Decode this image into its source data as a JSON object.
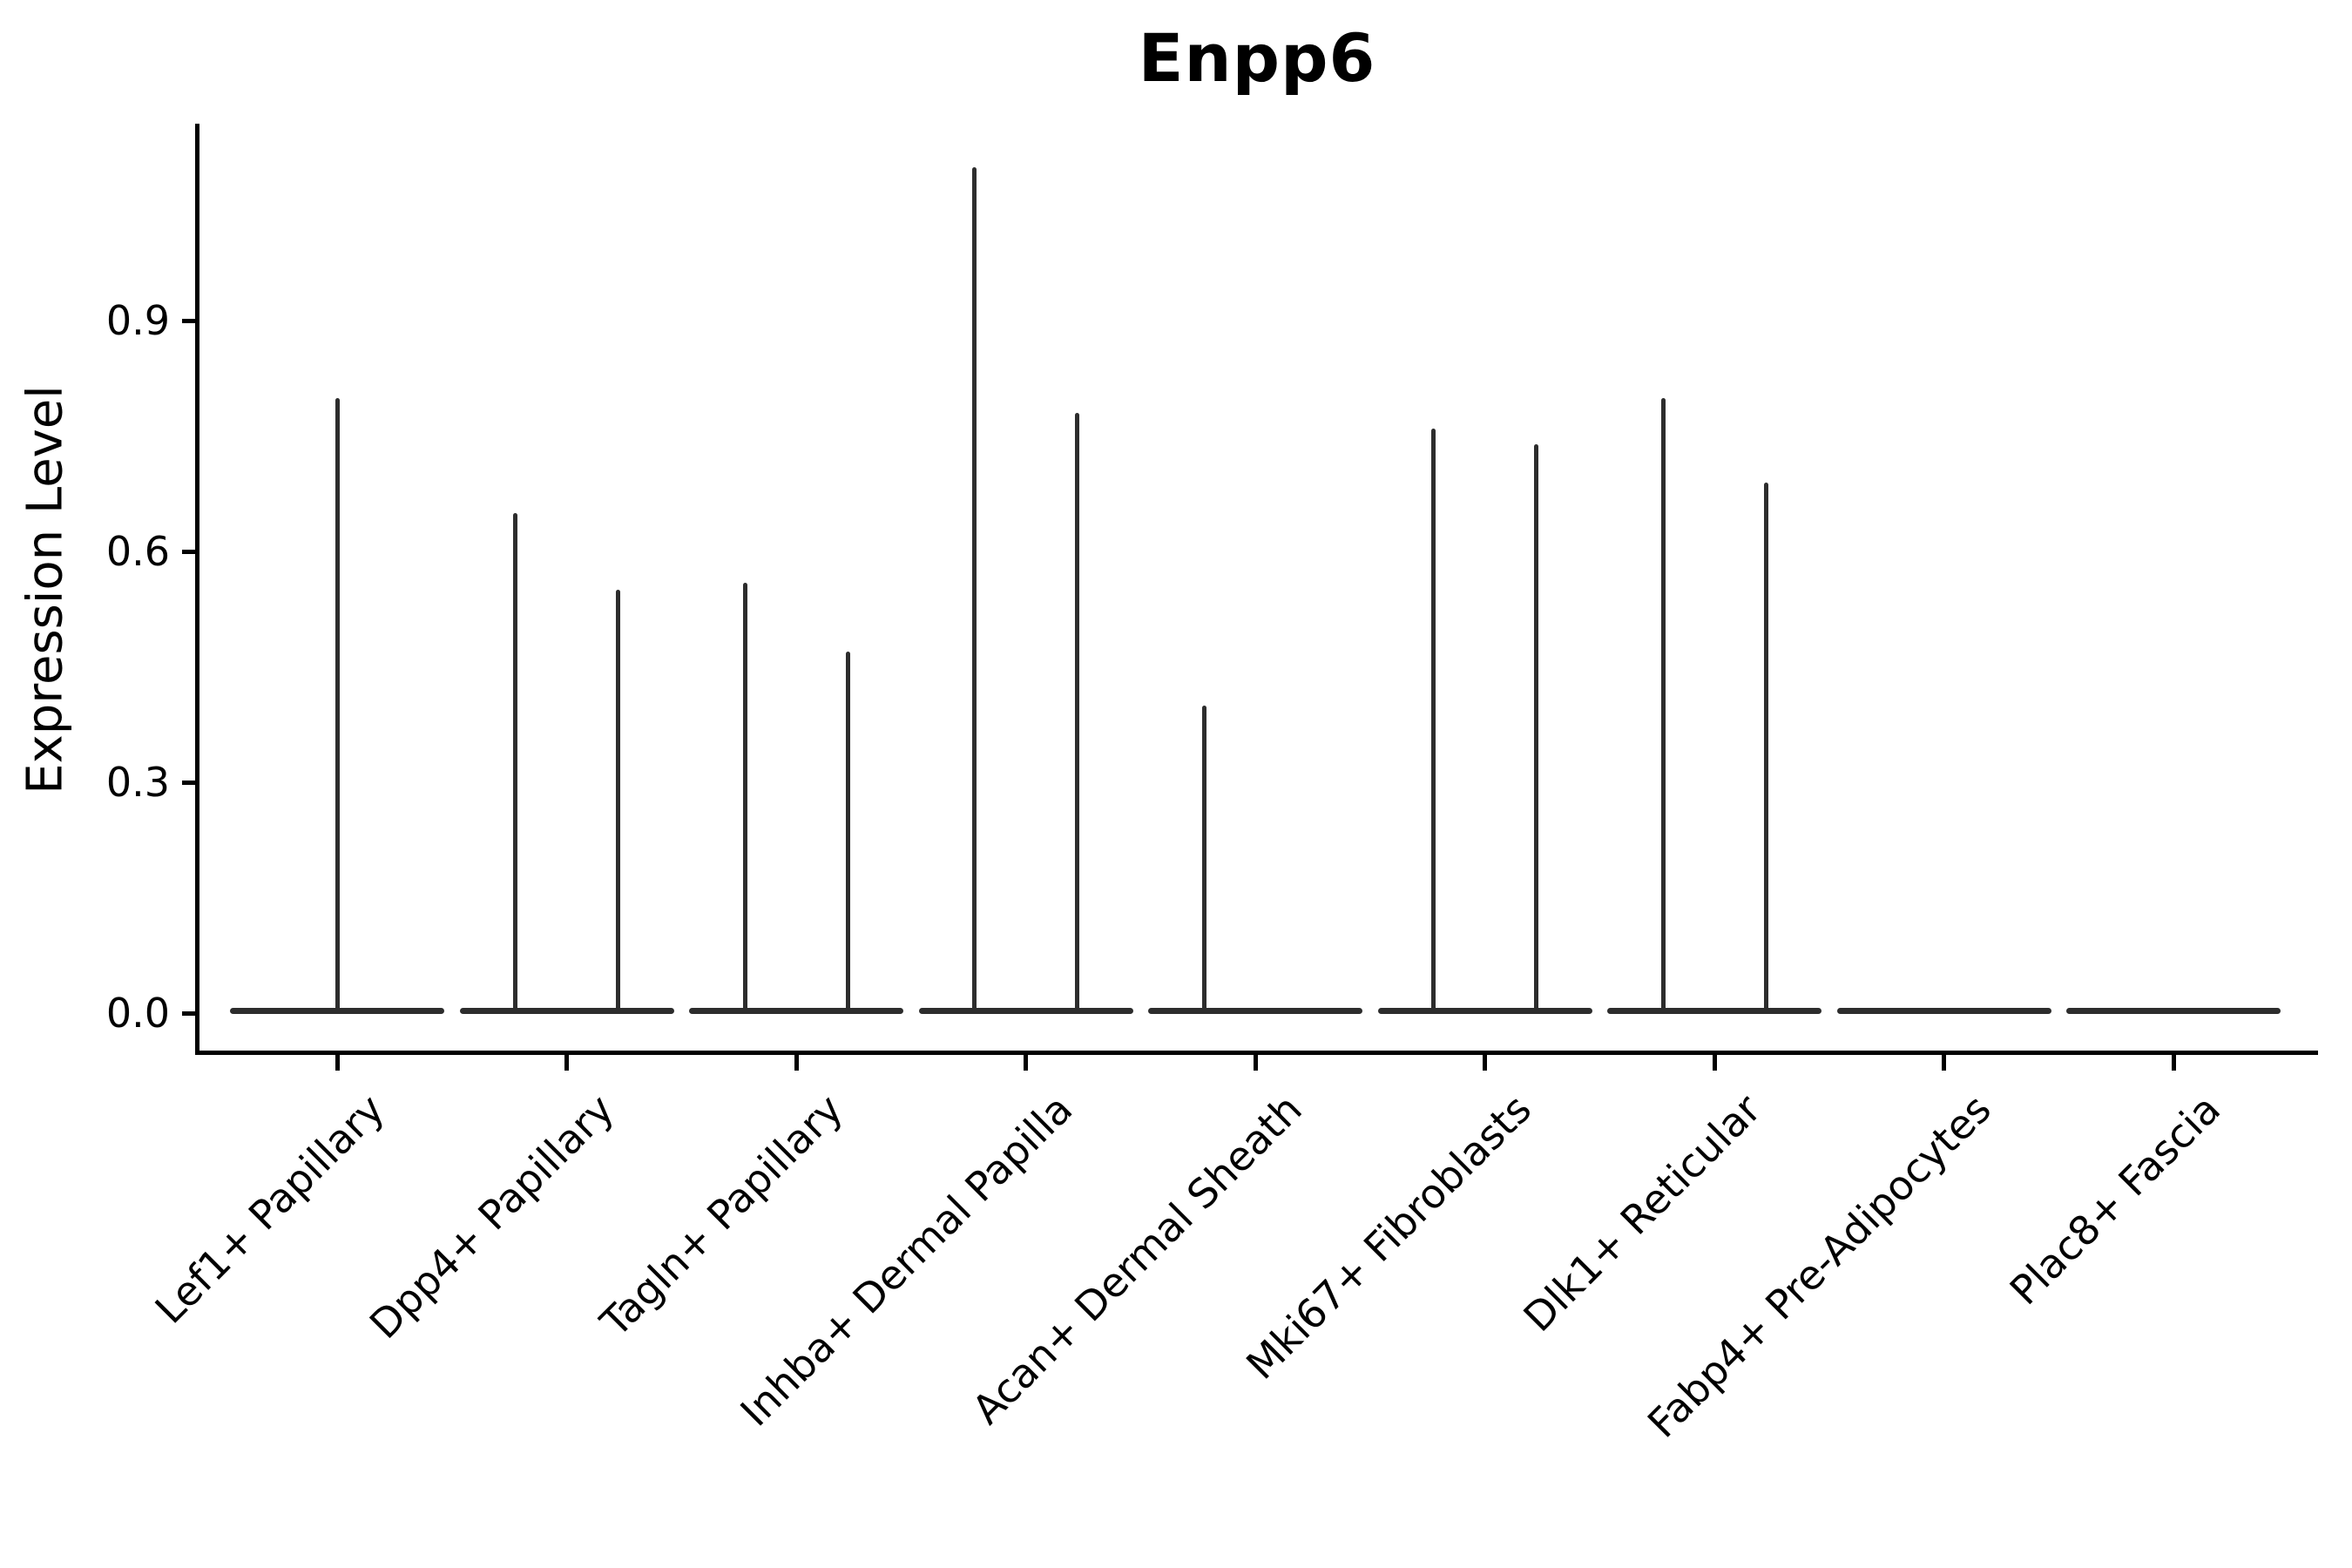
{
  "chart_data": {
    "type": "violin",
    "title": "Enpp6",
    "ylabel": "Expression Level",
    "xlabel": "",
    "grid": false,
    "legend": "none",
    "ylim": [
      -0.05,
      1.16
    ],
    "yticks": [
      {
        "value": 0.0,
        "label": "0.0"
      },
      {
        "value": 0.3,
        "label": "0.3"
      },
      {
        "value": 0.6,
        "label": "0.6"
      },
      {
        "value": 0.9,
        "label": "0.9"
      }
    ],
    "categories": [
      "Lef1+ Papillary",
      "Dpp4+ Papillary",
      "Tagln+ Papillary",
      "Inhba+ Dermal Papilla",
      "Acan+ Dermal Sheath",
      "Mki67+ Fibroblasts",
      "Dlk1+ Reticular",
      "Fabp4+ Pre-Adipocytes",
      "Plac8+ Fascia"
    ],
    "series": [
      {
        "category": "Lef1+ Papillary",
        "spikes": [
          {
            "pos": "center",
            "max": 0.8
          }
        ]
      },
      {
        "category": "Dpp4+ Papillary",
        "spikes": [
          {
            "pos": "left",
            "max": 0.65
          },
          {
            "pos": "right",
            "max": 0.55
          }
        ]
      },
      {
        "category": "Tagln+ Papillary",
        "spikes": [
          {
            "pos": "left",
            "max": 0.56
          },
          {
            "pos": "right",
            "max": 0.47
          }
        ]
      },
      {
        "category": "Inhba+ Dermal Papilla",
        "spikes": [
          {
            "pos": "left",
            "max": 1.1
          },
          {
            "pos": "right",
            "max": 0.78
          }
        ]
      },
      {
        "category": "Acan+ Dermal Sheath",
        "spikes": [
          {
            "pos": "left",
            "max": 0.4
          }
        ]
      },
      {
        "category": "Mki67+ Fibroblasts",
        "spikes": [
          {
            "pos": "left",
            "max": 0.76
          },
          {
            "pos": "right",
            "max": 0.74
          }
        ]
      },
      {
        "category": "Dlk1+ Reticular",
        "spikes": [
          {
            "pos": "left",
            "max": 0.8
          },
          {
            "pos": "right",
            "max": 0.69
          }
        ]
      },
      {
        "category": "Fabp4+ Pre-Adipocytes",
        "spikes": []
      },
      {
        "category": "Plac8+ Fascia",
        "spikes": []
      }
    ],
    "violin_color": "#2d2d2d",
    "axis_color": "#000000",
    "background_color": "#ffffff"
  }
}
